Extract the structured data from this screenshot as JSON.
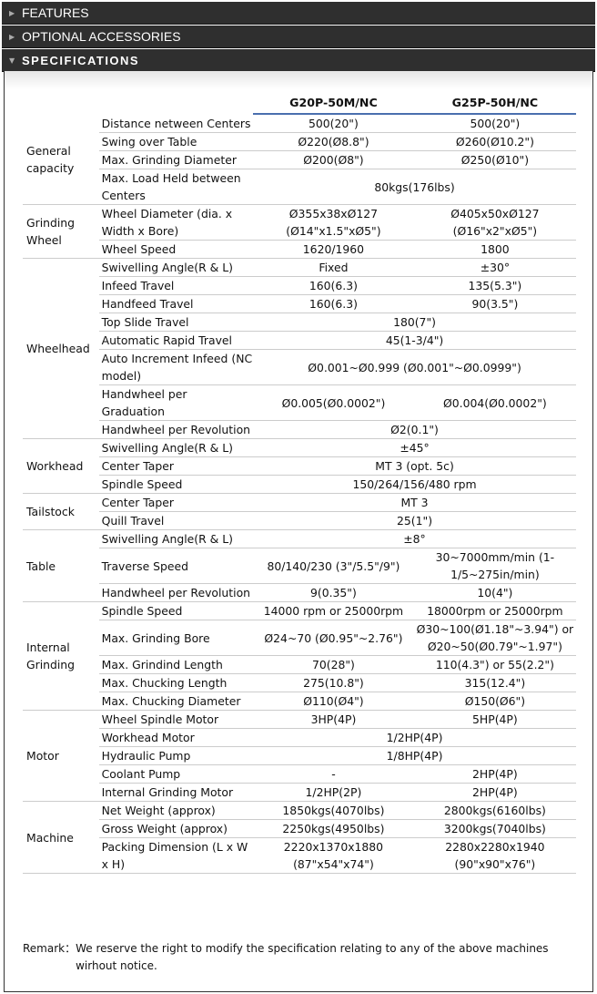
{
  "sections": [
    {
      "label": "FEATURES",
      "expanded": false
    },
    {
      "label": "OPTIONAL ACCESSORIES",
      "expanded": false
    },
    {
      "label": "SPECIFICATIONS",
      "expanded": true
    }
  ],
  "models": [
    "G20P-50M/NC",
    "G25P-50H/NC"
  ],
  "colors": {
    "header_bar": "#2f2f2f",
    "model_underline": "#4a6fae"
  },
  "groups": [
    {
      "name": "General capacity",
      "rows": [
        {
          "label": "Distance netween Centers",
          "values": [
            "500(20\")",
            "500(20\")"
          ]
        },
        {
          "label": "Swing over Table",
          "values": [
            "Ø220(Ø8.8\")",
            "Ø260(Ø10.2\")"
          ]
        },
        {
          "label": "Max. Grinding Diameter",
          "values": [
            "Ø200(Ø8\")",
            "Ø250(Ø10\")"
          ]
        },
        {
          "label": "Max. Load Held between Centers",
          "values": [
            "80kgs(176lbs)"
          ]
        }
      ]
    },
    {
      "name": "Grinding Wheel",
      "rows": [
        {
          "label": "Wheel Diameter (dia. x Width x Bore)",
          "values": [
            "Ø355x38xØ127 (Ø14\"x1.5\"xØ5\")",
            "Ø405x50xØ127 (Ø16\"x2\"xØ5\")"
          ]
        },
        {
          "label": "Wheel Speed",
          "values": [
            "1620/1960",
            "1800"
          ]
        }
      ]
    },
    {
      "name": "Wheelhead",
      "rows": [
        {
          "label": "Swivelling Angle(R & L)",
          "values": [
            "Fixed",
            "±30°"
          ]
        },
        {
          "label": "Infeed Travel",
          "values": [
            "160(6.3)",
            "135(5.3\")"
          ]
        },
        {
          "label": "Handfeed Travel",
          "values": [
            "160(6.3)",
            "90(3.5\")"
          ]
        },
        {
          "label": "Top Slide Travel",
          "values": [
            "180(7\")"
          ]
        },
        {
          "label": "Automatic Rapid Travel",
          "values": [
            "45(1-3/4\")"
          ]
        },
        {
          "label": "Auto Increment Infeed (NC model)",
          "values": [
            "Ø0.001~Ø0.999 (Ø0.001\"~Ø0.0999\")"
          ]
        },
        {
          "label": "Handwheel per Graduation",
          "values": [
            "Ø0.005(Ø0.0002\")",
            "Ø0.004(Ø0.0002\")"
          ]
        },
        {
          "label": "Handwheel per Revolution",
          "values": [
            "Ø2(0.1\")"
          ]
        }
      ]
    },
    {
      "name": "Workhead",
      "rows": [
        {
          "label": "Swivelling Angle(R & L)",
          "values": [
            "±45°"
          ]
        },
        {
          "label": "Center Taper",
          "values": [
            "MT 3 (opt. 5c)"
          ]
        },
        {
          "label": "Spindle Speed",
          "values": [
            "150/264/156/480 rpm"
          ]
        }
      ]
    },
    {
      "name": "Tailstock",
      "rows": [
        {
          "label": "Center Taper",
          "values": [
            "MT 3"
          ]
        },
        {
          "label": "Quill Travel",
          "values": [
            "25(1\")"
          ]
        }
      ]
    },
    {
      "name": "Table",
      "rows": [
        {
          "label": "Swivelling Angle(R & L)",
          "values": [
            "±8°"
          ]
        },
        {
          "label": "Traverse Speed",
          "values": [
            "80/140/230 (3\"/5.5\"/9\")",
            "30~7000mm/min (1-1/5~275in/min)"
          ]
        },
        {
          "label": "Handwheel per Revolution",
          "values": [
            "9(0.35\")",
            "10(4\")"
          ]
        }
      ]
    },
    {
      "name": "Internal Grinding",
      "rows": [
        {
          "label": "Spindle Speed",
          "values": [
            "14000 rpm or 25000rpm",
            "18000rpm or 25000rpm"
          ]
        },
        {
          "label": "Max. Grinding Bore",
          "values": [
            "Ø24~70 (Ø0.95\"~2.76\")",
            "Ø30~100(Ø1.18\"~3.94\") or Ø20~50(Ø0.79\"~1.97\")"
          ]
        },
        {
          "label": "Max. Grindind Length",
          "values": [
            "70(28\")",
            "110(4.3\") or 55(2.2\")"
          ]
        },
        {
          "label": "Max. Chucking Length",
          "values": [
            "275(10.8\")",
            "315(12.4\")"
          ]
        },
        {
          "label": "Max. Chucking Diameter",
          "values": [
            "Ø110(Ø4\")",
            "Ø150(Ø6\")"
          ]
        }
      ]
    },
    {
      "name": "Motor",
      "rows": [
        {
          "label": "Wheel Spindle Motor",
          "values": [
            "3HP(4P)",
            "5HP(4P)"
          ]
        },
        {
          "label": "Workhead Motor",
          "values": [
            "1/2HP(4P)"
          ]
        },
        {
          "label": "Hydraulic Pump",
          "values": [
            "1/8HP(4P)"
          ]
        },
        {
          "label": "Coolant Pump",
          "values": [
            "-",
            "2HP(4P)"
          ]
        },
        {
          "label": "Internal Grinding Motor",
          "values": [
            "1/2HP(2P)",
            "2HP(4P)"
          ]
        }
      ]
    },
    {
      "name": "Machine",
      "rows": [
        {
          "label": "Net Weight (approx)",
          "values": [
            "1850kgs(4070lbs)",
            "2800kgs(6160lbs)"
          ]
        },
        {
          "label": "Gross Weight (approx)",
          "values": [
            "2250kgs(4950lbs)",
            "3200kgs(7040lbs)"
          ]
        },
        {
          "label": "Packing Dimension (L x W x H)",
          "values": [
            "2220x1370x1880 (87\"x54\"x74\")",
            "2280x2280x1940 (90\"x90\"x76\")"
          ]
        }
      ]
    }
  ],
  "remark": {
    "label": "Remark：",
    "text": "We reserve the right to modify the specification relating to any of the above machines wirhout notice."
  }
}
